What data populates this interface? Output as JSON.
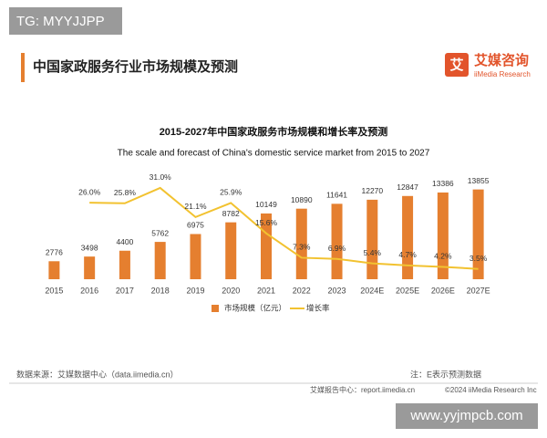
{
  "watermark_top": "TG: MYYJJPP",
  "header": {
    "title": "中国家政服务行业市场规模及预测",
    "logo_icon": "艾",
    "logo_name": "艾媒咨询",
    "logo_en": "iiMedia Research"
  },
  "chart_data": {
    "type": "combo",
    "title": "2015-2027年中国家政服务市场规模和增长率及预测",
    "subtitle": "The scale and forecast of China's domestic service market from 2015 to 2027",
    "categories": [
      "2015",
      "2016",
      "2017",
      "2018",
      "2019",
      "2020",
      "2021",
      "2022",
      "2023",
      "2024E",
      "2025E",
      "2026E",
      "2027E"
    ],
    "series": [
      {
        "name": "市场规模（亿元）",
        "type": "bar",
        "color": "#e57f2f",
        "values": [
          2776,
          3498,
          4400,
          5762,
          6975,
          8782,
          10149,
          10890,
          11641,
          12270,
          12847,
          13386,
          13855
        ]
      },
      {
        "name": "增长率",
        "type": "line",
        "axis": "y2",
        "color": "#f2c230",
        "values": [
          null,
          26.0,
          25.8,
          31.0,
          21.1,
          25.9,
          15.6,
          7.3,
          6.9,
          5.4,
          4.7,
          4.2,
          3.5
        ],
        "value_labels": [
          null,
          "26.0%",
          "25.8%",
          "31.0%",
          "21.1%",
          "25.9%",
          "15.6%",
          "7.3%",
          "6.9%",
          "5.4%",
          "4.7%",
          "4.2%",
          "3.5%"
        ]
      }
    ],
    "ylim": [
      0,
      20000
    ],
    "y2lim": [
      0,
      44
    ],
    "legend": "bottom"
  },
  "footer": {
    "source": "数据来源：艾媒数据中心（data.iimedia.cn）",
    "note": "注：E表示预测数据",
    "report": "艾媒报告中心：report.iimedia.cn",
    "copyright": "©2024  iiMedia Research  Inc"
  },
  "watermark_bottom": "www.yyjmpcb.com"
}
